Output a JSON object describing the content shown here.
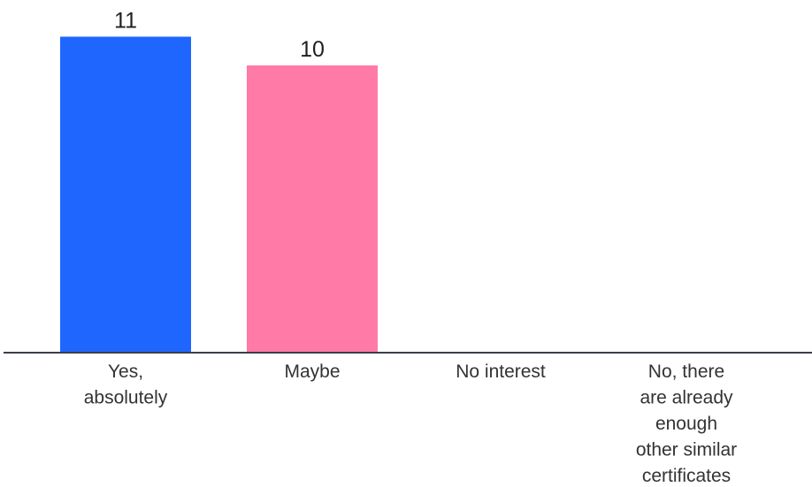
{
  "chart_data": {
    "type": "bar",
    "title": "",
    "xlabel": "",
    "ylabel": "",
    "categories": [
      [
        "Yes,",
        "absolutely"
      ],
      [
        "Maybe"
      ],
      [
        "No interest"
      ],
      [
        "No, there",
        "are already",
        "enough",
        "other similar",
        "certificates"
      ]
    ],
    "values": [
      11,
      10,
      0,
      0
    ],
    "data_labels": [
      "11",
      "10",
      "",
      ""
    ],
    "colors": [
      "#1f66ff",
      "#ff7aa6",
      "#1f66ff",
      "#ff7aa6"
    ],
    "ylim": [
      0,
      11.2
    ],
    "grid": false,
    "legend": "none"
  }
}
